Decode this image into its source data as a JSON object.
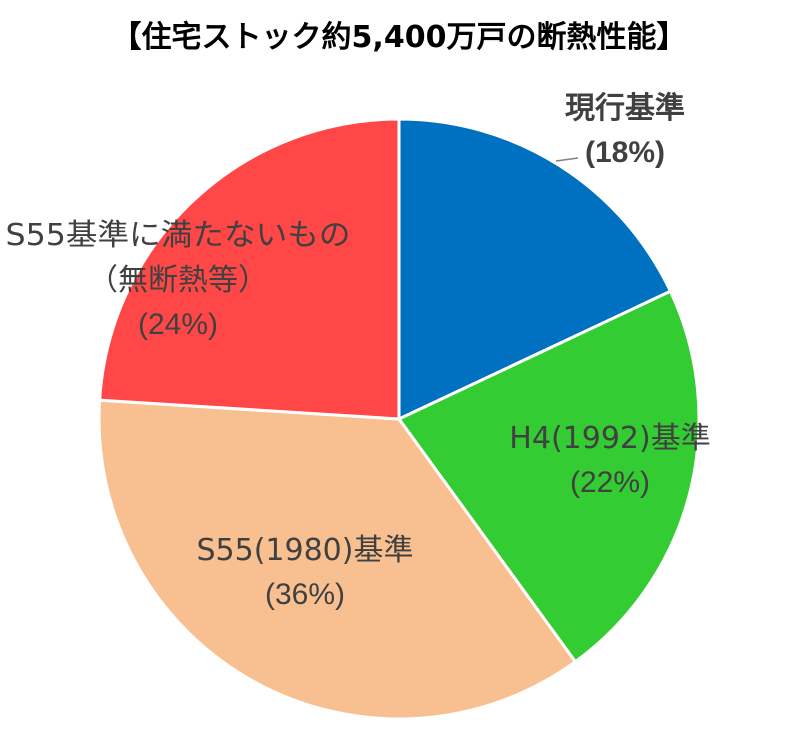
{
  "chart_data": {
    "type": "pie",
    "title": "【住宅ストック約5,400万戸の断熱性能】",
    "start_angle_deg": 0,
    "direction": "clockwise",
    "slices": [
      {
        "label": "現行基準",
        "value": 18,
        "value_label": "(18%)",
        "color": "#0070C0"
      },
      {
        "label": "H4(1992)基準",
        "value": 22,
        "value_label": "(22%)",
        "color": "#33CC33"
      },
      {
        "label": "S55(1980)基準",
        "value": 36,
        "value_label": "(36%)",
        "color": "#F8C090"
      },
      {
        "label": "S55基準に満たないもの",
        "label2": "（無断熱等）",
        "value": 24,
        "value_label": "(24%)",
        "color": "#FF4747"
      }
    ]
  }
}
